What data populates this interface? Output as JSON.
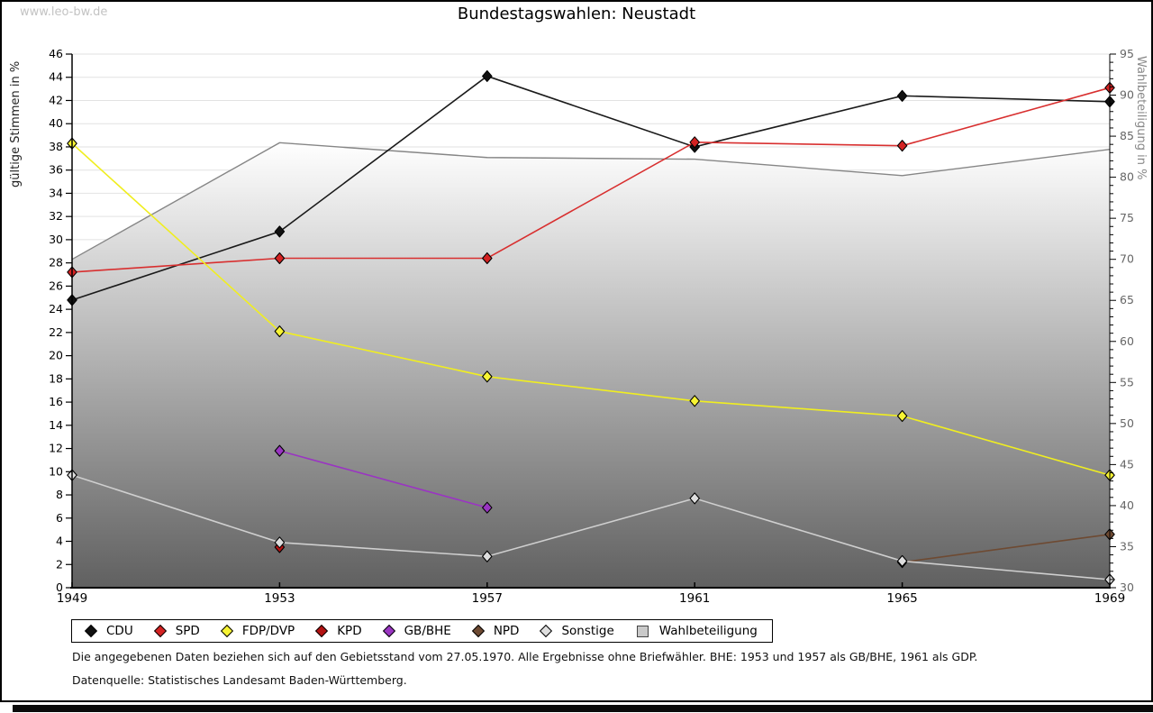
{
  "watermark": "www.leo-bw.de",
  "title": "Bundestagswahlen: Neustadt",
  "left_axis": {
    "label": "gültige Stimmen in %",
    "min": 0,
    "max": 46,
    "step": 2
  },
  "right_axis": {
    "label": "Wahlbeteiligung in %",
    "min": 30,
    "max": 95,
    "step": 5,
    "minor_step": 1
  },
  "x_labels": [
    "1949",
    "1953",
    "1957",
    "1961",
    "1965",
    "1969"
  ],
  "chart_data": {
    "type": "line",
    "title": "Bundestagswahlen: Neustadt",
    "x": [
      1949,
      1953,
      1957,
      1961,
      1965,
      1969
    ],
    "left_ylabel": "gültige Stimmen in %",
    "right_ylabel": "Wahlbeteiligung in %",
    "left_ylim": [
      0,
      46
    ],
    "right_ylim": [
      30,
      95
    ],
    "grid": "horizontal, light gray, every 2 (left scale)",
    "legend_position": "bottom",
    "series": [
      {
        "name": "CDU",
        "axis": "left",
        "style": "line+diamond",
        "line_color": "#1a1a1a",
        "marker_color": "#111111",
        "values": [
          24.8,
          30.7,
          44.1,
          38.0,
          42.4,
          41.9
        ]
      },
      {
        "name": "SPD",
        "axis": "left",
        "style": "line+diamond",
        "line_color": "#d82f2f",
        "marker_color": "#d42222",
        "values": [
          27.2,
          28.4,
          28.4,
          38.4,
          38.1,
          43.1
        ]
      },
      {
        "name": "FDP/DVP",
        "axis": "left",
        "style": "line+diamond",
        "line_color": "#f0ee20",
        "marker_color": "#f7f433",
        "values": [
          38.3,
          22.1,
          18.2,
          16.1,
          14.8,
          9.7
        ]
      },
      {
        "name": "KPD",
        "axis": "left",
        "style": "line+diamond",
        "line_color": "#b31212",
        "marker_color": "#b31212",
        "values": [
          null,
          3.5,
          null,
          null,
          null,
          null
        ]
      },
      {
        "name": "GB/BHE",
        "axis": "left",
        "style": "line+diamond",
        "line_color": "#9a35c2",
        "marker_color": "#9a35c2",
        "values": [
          null,
          11.8,
          6.9,
          null,
          null,
          null
        ]
      },
      {
        "name": "NPD",
        "axis": "left",
        "style": "line+diamond",
        "line_color": "#6e4a32",
        "marker_color": "#6e4a32",
        "values": [
          null,
          null,
          null,
          null,
          2.2,
          4.6
        ]
      },
      {
        "name": "Sonstige",
        "axis": "left",
        "style": "line+diamond",
        "line_color": "#cfcfcf",
        "marker_color": "#dedede",
        "values": [
          9.7,
          3.9,
          2.7,
          7.7,
          2.3,
          0.7
        ]
      },
      {
        "name": "Wahlbeteiligung",
        "axis": "right",
        "style": "area",
        "line_color": "#868686",
        "area_gradient": [
          "#ffffff",
          "#606060"
        ],
        "values": [
          70.0,
          84.2,
          82.4,
          82.2,
          80.2,
          83.4
        ]
      }
    ]
  },
  "legend": {
    "items": [
      {
        "label": "CDU",
        "marker": "diamond",
        "color": "#111111"
      },
      {
        "label": "SPD",
        "marker": "diamond",
        "color": "#d42222"
      },
      {
        "label": "FDP/DVP",
        "marker": "diamond",
        "color": "#f7f433"
      },
      {
        "label": "KPD",
        "marker": "diamond",
        "color": "#b31212"
      },
      {
        "label": "GB/BHE",
        "marker": "diamond",
        "color": "#9a35c2"
      },
      {
        "label": "NPD",
        "marker": "diamond",
        "color": "#6e4a32"
      },
      {
        "label": "Sonstige",
        "marker": "diamond",
        "color": "#dedede"
      },
      {
        "label": "Wahlbeteiligung",
        "marker": "square",
        "color": "#c9c9c9"
      }
    ]
  },
  "footnotes": [
    "Die angegebenen Daten beziehen sich auf den Gebietsstand vom 27.05.1970. Alle Ergebnisse ohne Briefwähler. BHE: 1953 und 1957 als GB/BHE, 1961 als GDP.",
    "Datenquelle: Statistisches Landesamt Baden-Württemberg."
  ]
}
